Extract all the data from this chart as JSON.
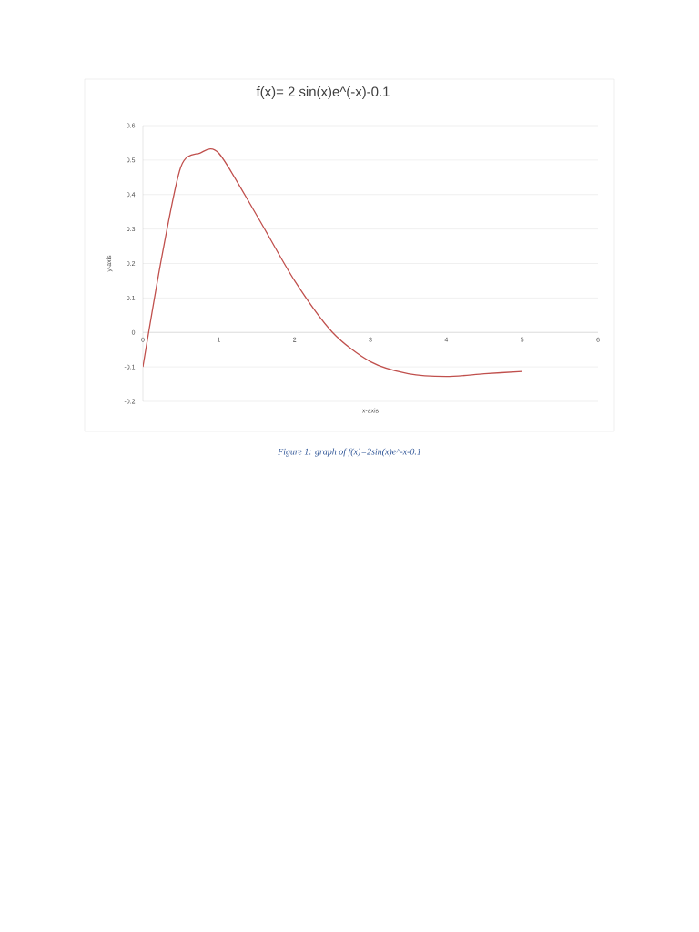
{
  "chart_data": {
    "type": "line",
    "title": "f(x)= 2 sin(x)e^(-x)-0.1",
    "xlabel": "x-axis",
    "ylabel": "y-axis",
    "annotations": [
      "Figure 1: graph of f(x)=2sin(x)e^-x-0.1"
    ],
    "x": [
      0,
      0.25,
      0.5,
      0.75,
      1,
      1.5,
      2,
      2.5,
      3,
      3.5,
      4,
      4.5,
      5
    ],
    "series": [
      {
        "color": "#c0504d",
        "values": [
          -0.1,
          0.22,
          0.48,
          0.52,
          0.52,
          0.34,
          0.15,
          0.0,
          -0.085,
          -0.12,
          -0.128,
          -0.12,
          -0.113
        ]
      }
    ],
    "xlim": [
      0,
      6
    ],
    "xticks": [
      0,
      1,
      2,
      3,
      4,
      5,
      6
    ],
    "ylim": [
      -0.2,
      0.6
    ],
    "yticks": [
      -0.2,
      -0.1,
      0,
      0.1,
      0.2,
      0.3,
      0.4,
      0.5,
      0.6
    ],
    "grid": "y"
  }
}
